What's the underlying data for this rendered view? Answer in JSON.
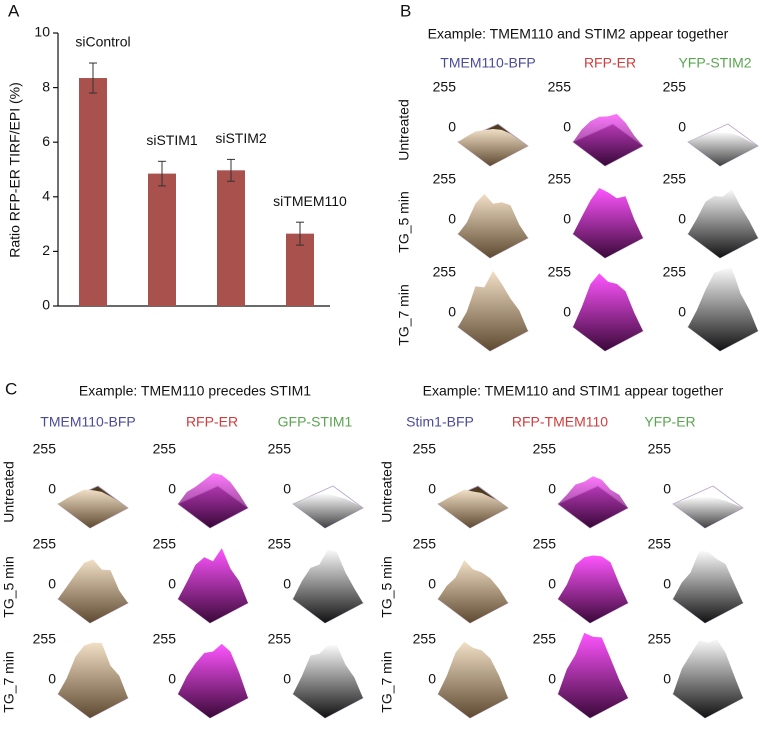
{
  "panel_a_label": "A",
  "chart_data": {
    "type": "bar",
    "ylabel": "Ratio RFP-ER TIRF/EPI (%)",
    "categories": [
      "siControl",
      "siSTIM1",
      "siSTIM2",
      "siTMEM110"
    ],
    "values": [
      8.35,
      4.85,
      4.97,
      2.65
    ],
    "errors": [
      0.55,
      0.45,
      0.4,
      0.42
    ],
    "color": "#a9514c",
    "ylim": [
      0,
      10
    ],
    "yticks": [
      0,
      2,
      4,
      6,
      8,
      10
    ]
  },
  "panels": [
    {
      "label": "B",
      "title": "Example: TMEM110 and STIM2 appear together",
      "columns": [
        "TMEM110-BFP",
        "RFP-ER",
        "YFP-STIM2"
      ],
      "rows": [
        "Untreated",
        "TG_5 min",
        "TG_7 min"
      ],
      "z_tick_labels": [
        "255",
        "0"
      ]
    },
    {
      "label": "C",
      "title": "Example: TMEM110 precedes STIM1",
      "columns": [
        "TMEM110-BFP",
        "RFP-ER",
        "GFP-STIM1"
      ],
      "rows": [
        "Untreated",
        "TG_5 min",
        "TG_7 min"
      ],
      "z_tick_labels": [
        "255",
        "0"
      ]
    },
    {
      "title": "Example: TMEM110 and STIM1 appear together",
      "columns": [
        "Stim1-BFP",
        "RFP-TMEM110",
        "YFP-ER"
      ],
      "rows": [
        "Untreated",
        "TG_5 min",
        "TG_7 min"
      ],
      "z_tick_labels": [
        "255",
        "0"
      ]
    }
  ]
}
